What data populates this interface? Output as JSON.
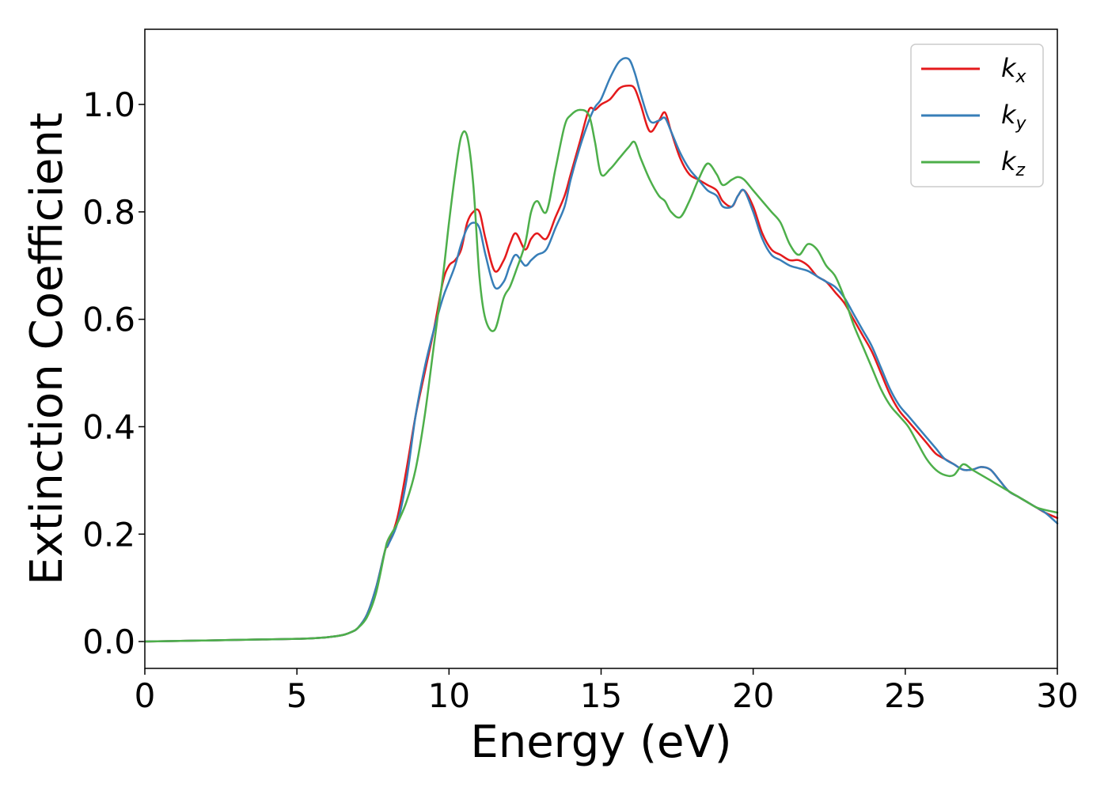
{
  "chart_data": {
    "type": "line",
    "title": "",
    "xlabel": "Energy (eV)",
    "ylabel": "Extinction Coefficient",
    "xlim": [
      0,
      30
    ],
    "ylim": [
      -0.05,
      1.14
    ],
    "xticks": [
      0,
      5,
      10,
      15,
      20,
      25,
      30
    ],
    "xtick_labels": [
      "0",
      "5",
      "10",
      "15",
      "20",
      "25",
      "30"
    ],
    "yticks": [
      0.0,
      0.2,
      0.4,
      0.6,
      0.8,
      1.0
    ],
    "ytick_labels": [
      "0.0",
      "0.2",
      "0.4",
      "0.6",
      "0.8",
      "1.0"
    ],
    "grid": false,
    "legend_position": "top-right",
    "series": [
      {
        "name": "k",
        "subscript": "x",
        "color": "#e41a1c",
        "x": [
          0,
          1,
          2,
          3,
          4,
          5,
          5.5,
          6,
          6.5,
          6.8,
          7,
          7.3,
          7.6,
          7.9,
          8,
          8.3,
          8.6,
          8.9,
          9.2,
          9.5,
          9.8,
          10,
          10.2,
          10.4,
          10.6,
          10.8,
          11,
          11.2,
          11.5,
          11.8,
          12,
          12.2,
          12.5,
          12.7,
          12.9,
          13.2,
          13.5,
          13.8,
          14,
          14.3,
          14.6,
          14.8,
          15,
          15.3,
          15.6,
          15.9,
          16.1,
          16.3,
          16.6,
          16.9,
          17.1,
          17.3,
          17.6,
          17.9,
          18.2,
          18.5,
          18.8,
          19,
          19.3,
          19.5,
          19.7,
          20,
          20.3,
          20.6,
          20.9,
          21.2,
          21.5,
          21.8,
          22.1,
          22.4,
          22.7,
          23,
          23.3,
          23.6,
          23.9,
          24.2,
          24.5,
          24.8,
          25.1,
          25.4,
          25.7,
          26,
          26.3,
          26.6,
          26.9,
          27.2,
          27.5,
          27.8,
          28.1,
          28.4,
          28.7,
          29,
          29.3,
          29.6,
          30
        ],
        "y": [
          0,
          0.001,
          0.002,
          0.003,
          0.004,
          0.005,
          0.006,
          0.008,
          0.012,
          0.018,
          0.025,
          0.05,
          0.1,
          0.17,
          0.18,
          0.23,
          0.32,
          0.42,
          0.5,
          0.58,
          0.67,
          0.7,
          0.71,
          0.73,
          0.78,
          0.8,
          0.8,
          0.75,
          0.69,
          0.71,
          0.74,
          0.76,
          0.73,
          0.75,
          0.76,
          0.75,
          0.79,
          0.83,
          0.87,
          0.93,
          0.99,
          0.99,
          1.0,
          1.01,
          1.03,
          1.035,
          1.03,
          1.0,
          0.95,
          0.97,
          0.985,
          0.95,
          0.9,
          0.87,
          0.86,
          0.85,
          0.84,
          0.82,
          0.81,
          0.83,
          0.84,
          0.81,
          0.76,
          0.73,
          0.72,
          0.71,
          0.71,
          0.7,
          0.68,
          0.67,
          0.65,
          0.63,
          0.6,
          0.57,
          0.54,
          0.5,
          0.46,
          0.43,
          0.41,
          0.39,
          0.37,
          0.35,
          0.34,
          0.33,
          0.32,
          0.32,
          0.325,
          0.32,
          0.3,
          0.28,
          0.27,
          0.26,
          0.25,
          0.24,
          0.23
        ]
      },
      {
        "name": "k",
        "subscript": "y",
        "color": "#377eb8",
        "x": [
          0,
          1,
          2,
          3,
          4,
          5,
          5.5,
          6,
          6.5,
          6.8,
          7,
          7.3,
          7.6,
          7.9,
          8,
          8.3,
          8.6,
          8.9,
          9.2,
          9.5,
          9.8,
          10,
          10.2,
          10.4,
          10.6,
          10.8,
          11,
          11.2,
          11.5,
          11.8,
          12,
          12.2,
          12.5,
          12.7,
          12.9,
          13.2,
          13.5,
          13.8,
          14,
          14.3,
          14.6,
          14.8,
          15,
          15.3,
          15.6,
          15.9,
          16.1,
          16.3,
          16.6,
          16.9,
          17.1,
          17.3,
          17.6,
          17.9,
          18.2,
          18.5,
          18.8,
          19,
          19.3,
          19.5,
          19.7,
          20,
          20.3,
          20.6,
          20.9,
          21.2,
          21.5,
          21.8,
          22.1,
          22.4,
          22.7,
          23,
          23.3,
          23.6,
          23.9,
          24.2,
          24.5,
          24.8,
          25.1,
          25.4,
          25.7,
          26,
          26.3,
          26.6,
          26.9,
          27.2,
          27.5,
          27.8,
          28.1,
          28.4,
          28.7,
          29,
          29.3,
          29.6,
          30
        ],
        "y": [
          0,
          0.001,
          0.002,
          0.003,
          0.004,
          0.005,
          0.006,
          0.008,
          0.012,
          0.018,
          0.025,
          0.05,
          0.1,
          0.17,
          0.18,
          0.22,
          0.3,
          0.42,
          0.51,
          0.58,
          0.64,
          0.67,
          0.7,
          0.74,
          0.77,
          0.78,
          0.77,
          0.72,
          0.66,
          0.67,
          0.7,
          0.72,
          0.7,
          0.71,
          0.72,
          0.73,
          0.77,
          0.81,
          0.86,
          0.92,
          0.97,
          0.995,
          1.01,
          1.05,
          1.08,
          1.085,
          1.06,
          1.02,
          0.97,
          0.97,
          0.975,
          0.95,
          0.91,
          0.88,
          0.86,
          0.84,
          0.83,
          0.81,
          0.81,
          0.83,
          0.84,
          0.8,
          0.75,
          0.72,
          0.71,
          0.7,
          0.695,
          0.69,
          0.68,
          0.67,
          0.66,
          0.64,
          0.61,
          0.58,
          0.55,
          0.51,
          0.47,
          0.44,
          0.42,
          0.4,
          0.38,
          0.36,
          0.34,
          0.33,
          0.32,
          0.32,
          0.325,
          0.32,
          0.3,
          0.28,
          0.27,
          0.26,
          0.25,
          0.24,
          0.22
        ]
      },
      {
        "name": "k",
        "subscript": "z",
        "color": "#4daf4a",
        "x": [
          0,
          1,
          2,
          3,
          4,
          5,
          5.5,
          6,
          6.5,
          6.8,
          7,
          7.3,
          7.6,
          7.9,
          8,
          8.3,
          8.6,
          8.9,
          9.2,
          9.5,
          9.8,
          10,
          10.2,
          10.4,
          10.6,
          10.8,
          11,
          11.2,
          11.5,
          11.8,
          12,
          12.2,
          12.5,
          12.7,
          12.9,
          13.2,
          13.5,
          13.8,
          14,
          14.3,
          14.6,
          14.8,
          15,
          15.3,
          15.6,
          15.9,
          16.1,
          16.3,
          16.6,
          16.9,
          17.1,
          17.3,
          17.6,
          17.9,
          18.2,
          18.5,
          18.8,
          19,
          19.3,
          19.5,
          19.7,
          20,
          20.3,
          20.6,
          20.9,
          21.2,
          21.5,
          21.8,
          22.1,
          22.4,
          22.7,
          23,
          23.3,
          23.6,
          23.9,
          24.2,
          24.5,
          24.8,
          25.1,
          25.4,
          25.7,
          26,
          26.3,
          26.6,
          26.9,
          27.2,
          27.5,
          27.8,
          28.1,
          28.4,
          28.7,
          29,
          29.3,
          29.6,
          30
        ],
        "y": [
          0,
          0.001,
          0.002,
          0.003,
          0.004,
          0.005,
          0.006,
          0.008,
          0.012,
          0.018,
          0.025,
          0.045,
          0.09,
          0.17,
          0.19,
          0.22,
          0.26,
          0.32,
          0.42,
          0.55,
          0.68,
          0.78,
          0.87,
          0.94,
          0.94,
          0.85,
          0.68,
          0.6,
          0.58,
          0.64,
          0.66,
          0.69,
          0.74,
          0.8,
          0.82,
          0.8,
          0.88,
          0.96,
          0.98,
          0.99,
          0.98,
          0.93,
          0.87,
          0.88,
          0.9,
          0.92,
          0.93,
          0.9,
          0.86,
          0.83,
          0.82,
          0.8,
          0.79,
          0.82,
          0.86,
          0.89,
          0.87,
          0.85,
          0.86,
          0.865,
          0.86,
          0.84,
          0.82,
          0.8,
          0.78,
          0.74,
          0.72,
          0.74,
          0.73,
          0.7,
          0.68,
          0.64,
          0.59,
          0.55,
          0.51,
          0.47,
          0.44,
          0.42,
          0.4,
          0.37,
          0.34,
          0.32,
          0.31,
          0.31,
          0.33,
          0.32,
          0.31,
          0.3,
          0.29,
          0.28,
          0.27,
          0.26,
          0.25,
          0.245,
          0.24
        ]
      }
    ]
  }
}
